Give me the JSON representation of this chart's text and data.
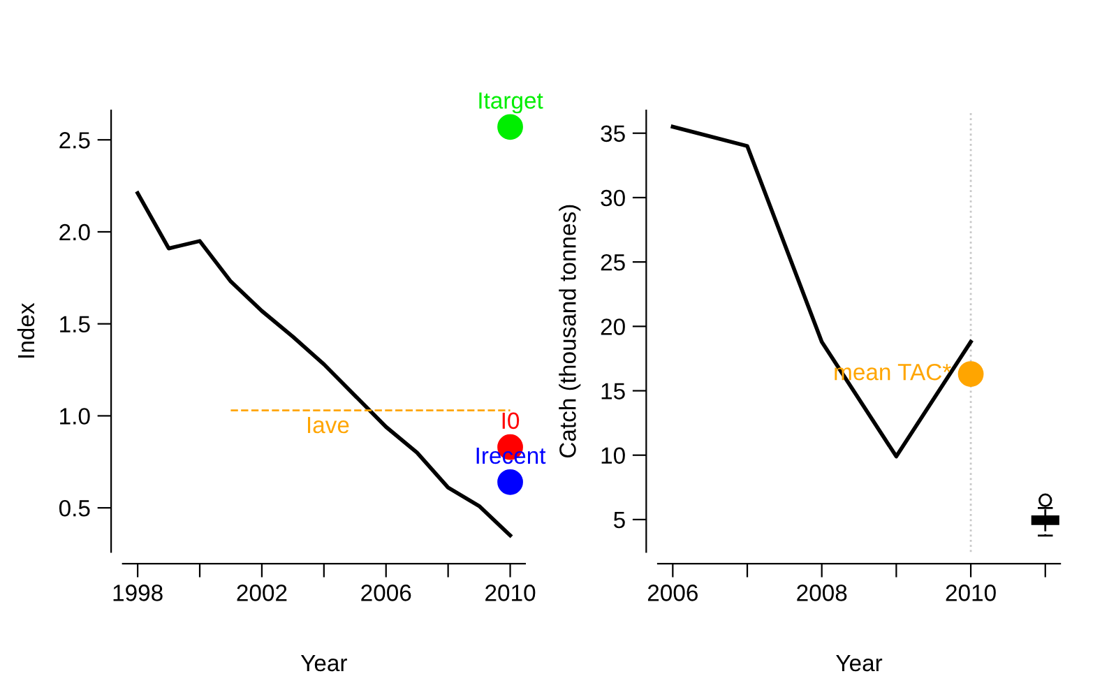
{
  "chart_data": [
    {
      "type": "line",
      "xlabel": "Year",
      "ylabel": "Index",
      "xlim": [
        1997.52,
        2010.48
      ],
      "ylim": [
        0.26,
        2.66
      ],
      "xticks": [
        1998,
        {
          "value": 2000,
          "label": null
        },
        2002,
        {
          "value": 2004,
          "label": null
        },
        2006,
        {
          "value": 2008,
          "label": null
        },
        2010
      ],
      "yticks": [
        0.5,
        {
          "value": 1,
          "label": "1.0"
        },
        1.5,
        {
          "value": 2,
          "label": "2.0"
        },
        2.5
      ],
      "grid": false,
      "legend": false,
      "series": [
        {
          "color": "#000000",
          "x": [
            1998,
            1999,
            2000,
            2001,
            2002,
            2003,
            2004,
            2005,
            2006,
            2007,
            2008,
            2009,
            2010
          ],
          "values": [
            2.21,
            1.91,
            1.95,
            1.73,
            1.57,
            1.43,
            1.28,
            1.11,
            0.94,
            0.8,
            0.61,
            0.51,
            0.35
          ]
        },
        {
          "type": "line",
          "name": "Iave",
          "color": "#ffa500",
          "line_style": "dashed",
          "x": [
            2001,
            2010
          ],
          "values": [
            1.03,
            1.03
          ]
        },
        {
          "type": "scatter",
          "name": "Itarget",
          "color": "#00ee00",
          "marker": "circle",
          "x": [
            2010
          ],
          "values": [
            2.57
          ]
        },
        {
          "type": "scatter",
          "name": "I0",
          "color": "#ff0000",
          "marker": "circle",
          "x": [
            2010
          ],
          "values": [
            0.83
          ]
        },
        {
          "type": "scatter",
          "name": "Irecent",
          "color": "#0000ff",
          "marker": "circle",
          "x": [
            2010
          ],
          "values": [
            0.64
          ]
        }
      ]
    },
    {
      "type": "line",
      "xlabel": "Year",
      "ylabel": "Catch (thousand tonnes)",
      "xlim": [
        2005.8,
        2011.2
      ],
      "ylim": [
        2.48,
        36.77
      ],
      "xticks": [
        2006,
        {
          "value": 2007,
          "label": null
        },
        2008,
        {
          "value": 2009,
          "label": null
        },
        2010,
        {
          "value": 2011,
          "label": null
        }
      ],
      "yticks": [
        5,
        10,
        15,
        20,
        25,
        30,
        35
      ],
      "grid": false,
      "legend": false,
      "ref_lines": [
        {
          "axis": "x",
          "value": 2010,
          "color": "#c8c8c8",
          "line_style": "dotted"
        }
      ],
      "series": [
        {
          "color": "#000000",
          "x": [
            2006,
            2007,
            2008,
            2009,
            2010
          ],
          "values": [
            35.5,
            34.0,
            18.8,
            9.9,
            18.8
          ]
        },
        {
          "type": "scatter",
          "name": "mean TAC*",
          "color": "#ffa500",
          "marker": "circle",
          "x": [
            2010
          ],
          "values": [
            16.3
          ]
        },
        {
          "type": "box",
          "color": "#000000",
          "x": [
            2011
          ],
          "boxes": [
            {
              "low": 3.75,
              "q1": 4.65,
              "median": 4.95,
              "q3": 5.24,
              "high": 5.9,
              "outliers": [
                6.5
              ]
            }
          ]
        }
      ]
    }
  ]
}
